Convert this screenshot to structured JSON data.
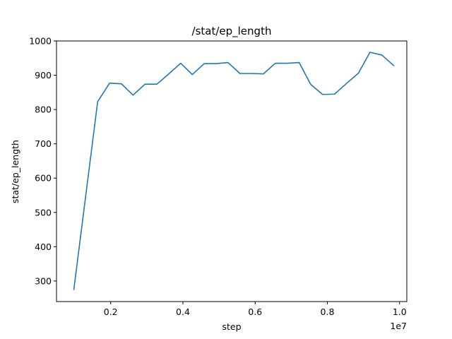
{
  "chart_data": {
    "type": "line",
    "title": "/stat/ep_length",
    "xlabel": "step",
    "ylabel": "stat/ep_length",
    "x_offset_label": "1e7",
    "xlim": [
      0.05,
      1.02
    ],
    "ylim": [
      240,
      1000
    ],
    "xticks": [
      0.2,
      0.4,
      0.6,
      0.8,
      1.0
    ],
    "xtick_labels": [
      "0.2",
      "0.4",
      "0.6",
      "0.8",
      "1.0"
    ],
    "yticks": [
      300,
      400,
      500,
      600,
      700,
      800,
      900,
      1000
    ],
    "ytick_labels": [
      "300",
      "400",
      "500",
      "600",
      "700",
      "800",
      "900",
      "1000"
    ],
    "grid": false,
    "series": [
      {
        "color": "#1f77b4",
        "x": [
          0.098,
          0.164,
          0.197,
          0.23,
          0.262,
          0.295,
          0.328,
          0.361,
          0.394,
          0.426,
          0.459,
          0.492,
          0.525,
          0.558,
          0.59,
          0.623,
          0.656,
          0.689,
          0.722,
          0.754,
          0.787,
          0.82,
          0.853,
          0.886,
          0.918,
          0.951,
          0.984
        ],
        "y": [
          275,
          823,
          877,
          875,
          842,
          874,
          874,
          904,
          935,
          902,
          934,
          934,
          937,
          905,
          905,
          904,
          935,
          935,
          937,
          873,
          844,
          845,
          876,
          906,
          967,
          959,
          928
        ]
      }
    ]
  }
}
